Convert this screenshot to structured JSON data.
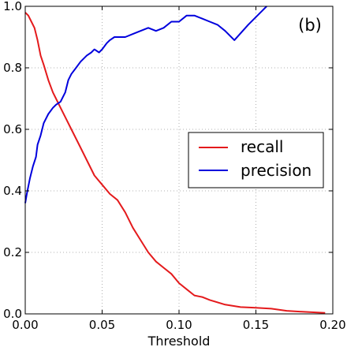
{
  "chart_data": {
    "type": "line",
    "panel_label": "(b)",
    "xlabel": "Threshold",
    "ylabel": "",
    "xlim": [
      0.0,
      0.2
    ],
    "ylim": [
      0.0,
      1.0
    ],
    "xticks": [
      0.0,
      0.05,
      0.1,
      0.15,
      0.2
    ],
    "xtick_labels": [
      "0.00",
      "0.05",
      "0.10",
      "0.15",
      "0.20"
    ],
    "yticks": [
      0.0,
      0.2,
      0.4,
      0.6,
      0.8,
      1.0
    ],
    "ytick_labels": [
      "0.0",
      "0.2",
      "0.4",
      "0.6",
      "0.8",
      "1.0"
    ],
    "grid": true,
    "legend_position": "center-right",
    "series": [
      {
        "name": "recall",
        "color": "#e41a1c",
        "x": [
          0.0,
          0.002,
          0.004,
          0.006,
          0.008,
          0.01,
          0.012,
          0.015,
          0.018,
          0.02,
          0.023,
          0.026,
          0.03,
          0.035,
          0.04,
          0.045,
          0.05,
          0.055,
          0.06,
          0.065,
          0.07,
          0.075,
          0.08,
          0.085,
          0.09,
          0.095,
          0.1,
          0.105,
          0.11,
          0.115,
          0.12,
          0.13,
          0.14,
          0.15,
          0.16,
          0.17,
          0.18,
          0.195
        ],
        "y": [
          0.98,
          0.97,
          0.95,
          0.93,
          0.89,
          0.84,
          0.81,
          0.76,
          0.72,
          0.7,
          0.67,
          0.64,
          0.6,
          0.55,
          0.5,
          0.45,
          0.42,
          0.39,
          0.37,
          0.33,
          0.28,
          0.24,
          0.2,
          0.17,
          0.15,
          0.13,
          0.1,
          0.08,
          0.06,
          0.055,
          0.045,
          0.03,
          0.022,
          0.02,
          0.017,
          0.01,
          0.007,
          0.003
        ]
      },
      {
        "name": "precision",
        "color": "#0000dd",
        "x": [
          0.0,
          0.001,
          0.003,
          0.005,
          0.007,
          0.008,
          0.01,
          0.012,
          0.015,
          0.018,
          0.02,
          0.023,
          0.026,
          0.028,
          0.03,
          0.033,
          0.036,
          0.04,
          0.043,
          0.045,
          0.048,
          0.05,
          0.053,
          0.055,
          0.058,
          0.06,
          0.065,
          0.07,
          0.075,
          0.08,
          0.085,
          0.09,
          0.095,
          0.1,
          0.105,
          0.11,
          0.115,
          0.12,
          0.125,
          0.13,
          0.136,
          0.145,
          0.155,
          0.157
        ],
        "y": [
          0.36,
          0.39,
          0.44,
          0.48,
          0.51,
          0.55,
          0.58,
          0.62,
          0.65,
          0.67,
          0.68,
          0.69,
          0.72,
          0.76,
          0.78,
          0.8,
          0.82,
          0.84,
          0.85,
          0.86,
          0.85,
          0.86,
          0.88,
          0.89,
          0.9,
          0.9,
          0.9,
          0.91,
          0.92,
          0.93,
          0.92,
          0.93,
          0.95,
          0.95,
          0.97,
          0.97,
          0.96,
          0.95,
          0.94,
          0.92,
          0.89,
          0.94,
          0.99,
          1.0
        ]
      }
    ]
  }
}
